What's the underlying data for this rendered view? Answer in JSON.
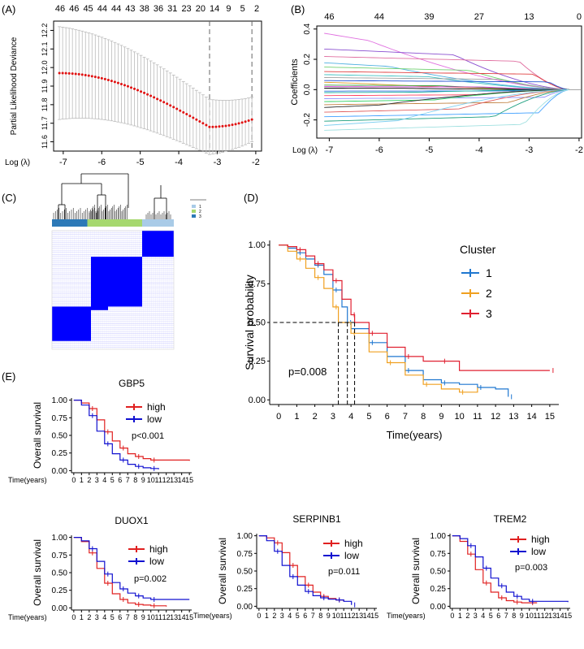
{
  "panel_labels": [
    "(A)",
    "(B)",
    "(C)",
    "(D)",
    "(E)"
  ],
  "chart_data": [
    {
      "id": "A",
      "type": "scatter",
      "ylabel": "Partial Likelihood Deviance",
      "xlabel": "Log (λ)",
      "xlim": [
        -7.25,
        -1.85
      ],
      "ylim": [
        11.55,
        12.25
      ],
      "x_ticks": [
        -7,
        -6,
        -5,
        -4,
        -3,
        -2
      ],
      "y_ticks": [
        "11.6",
        "11.7",
        "11.8",
        "11.9",
        "12.0",
        "12.1",
        "12.2"
      ],
      "y_tick_values": [
        11.6,
        11.7,
        11.8,
        11.9,
        12.0,
        12.1,
        12.2
      ],
      "top_axis_labels": [
        "46",
        "46",
        "45",
        "44",
        "44",
        "43",
        "38",
        "36",
        "31",
        "23",
        "20",
        "14",
        "9",
        "5",
        "2"
      ],
      "vlines": [
        -3.2,
        -2.1
      ],
      "n_points": 60,
      "curve": {
        "x_start": -7.1,
        "x_end": -2.1,
        "y_start": 11.97,
        "y_min": 11.68,
        "y_end": 11.72,
        "x_at_min": -3.2
      },
      "error_bar_halfwidth": {
        "start": 0.25,
        "end": 0.12
      }
    },
    {
      "id": "B",
      "type": "line",
      "ylabel": "Coefficients",
      "xlabel": "Log (λ)",
      "xlim": [
        -7.25,
        -1.95
      ],
      "ylim": [
        -0.32,
        0.42
      ],
      "x_ticks": [
        -7,
        -6,
        -5,
        -4,
        -3,
        -2
      ],
      "y_ticks": [
        "-0.2",
        "0.0",
        "0.2",
        "0.4"
      ],
      "y_tick_values": [
        -0.2,
        0.0,
        0.2,
        0.4
      ],
      "top_axis_labels": [
        "46",
        "44",
        "39",
        "27",
        "13",
        "0"
      ],
      "top_axis_positions": [
        -7,
        -6,
        -5,
        -4,
        -3,
        -2
      ],
      "converge_x": -2.2,
      "paths": [
        {
          "start": 0.38,
          "drop": -6.2,
          "color": "#e070e0"
        },
        {
          "start": 0.27,
          "drop": -4.5,
          "color": "#8a4fd0"
        },
        {
          "start": 0.22,
          "drop": -3.2,
          "color": "#e06fa0"
        },
        {
          "start": 0.18,
          "drop": -5.8,
          "color": "#4fb0e0"
        },
        {
          "start": 0.15,
          "drop": -4.2,
          "color": "#70d070"
        },
        {
          "start": 0.12,
          "drop": -2.9,
          "color": "#e04040"
        },
        {
          "start": 0.1,
          "drop": -5.0,
          "color": "#40c0c0"
        },
        {
          "start": 0.08,
          "drop": -3.6,
          "color": "#a0a0a0"
        },
        {
          "start": 0.06,
          "drop": -2.6,
          "color": "#2050d0"
        },
        {
          "start": 0.05,
          "drop": -6.5,
          "color": "#e0a030"
        },
        {
          "start": 0.03,
          "drop": -4.8,
          "color": "#40a040"
        },
        {
          "start": 0.02,
          "drop": -3.9,
          "color": "#d030d0"
        },
        {
          "start": 0.01,
          "drop": -5.5,
          "color": "#000000"
        },
        {
          "start": -0.01,
          "drop": -3.0,
          "color": "#3070e0"
        },
        {
          "start": -0.02,
          "drop": -5.2,
          "color": "#20b0a0"
        },
        {
          "start": -0.04,
          "drop": -4.1,
          "color": "#ff4060"
        },
        {
          "start": -0.06,
          "drop": -2.7,
          "color": "#9090ff"
        },
        {
          "start": -0.08,
          "drop": -4.9,
          "color": "#30d060"
        },
        {
          "start": -0.1,
          "drop": -3.4,
          "color": "#c08040"
        },
        {
          "start": -0.12,
          "drop": -6.0,
          "color": "#303030"
        },
        {
          "start": -0.15,
          "drop": -4.4,
          "color": "#e06060"
        },
        {
          "start": -0.18,
          "drop": -2.8,
          "color": "#40a0ff"
        },
        {
          "start": -0.21,
          "drop": -3.7,
          "color": "#20a080"
        },
        {
          "start": -0.24,
          "drop": -5.6,
          "color": "#80d0f0"
        },
        {
          "start": -0.27,
          "drop": -3.1,
          "color": "#a0e0e0"
        }
      ]
    },
    {
      "id": "C",
      "type": "heatmap",
      "legend": [
        "1",
        "2",
        "3"
      ],
      "colors": {
        "1": "#2c79b7",
        "2": "#a6d86e",
        "3": "#a9cbe7",
        "fill": "#0000ff"
      },
      "blocks": [
        {
          "cluster": "2",
          "from": 0.29,
          "to": 0.74
        },
        {
          "cluster": "3",
          "from": 0.74,
          "to": 1.0
        },
        {
          "cluster": "1",
          "from": 0.0,
          "to": 0.29
        }
      ]
    },
    {
      "id": "D",
      "type": "line",
      "ylabel": "Survival probability",
      "xlabel": "Time(years)",
      "xlim": [
        -0.5,
        15.5
      ],
      "ylim": [
        -0.05,
        1.05
      ],
      "x_ticks": [
        0,
        1,
        2,
        3,
        4,
        5,
        6,
        7,
        8,
        9,
        10,
        11,
        12,
        13,
        14,
        15
      ],
      "y_ticks": [
        "0.00",
        "0.25",
        "0.50",
        "0.75",
        "1.00"
      ],
      "y_tick_values": [
        0,
        0.25,
        0.5,
        0.75,
        1.0
      ],
      "legend_title": "Cluster",
      "annotation": "p=0.008",
      "median_times": [
        3.3,
        3.8,
        4.2
      ],
      "series": [
        {
          "name": "1",
          "color": "#1f77d0",
          "points": [
            [
              0,
              1
            ],
            [
              0.5,
              0.98
            ],
            [
              1,
              0.95
            ],
            [
              1.5,
              0.91
            ],
            [
              2,
              0.87
            ],
            [
              2.5,
              0.81
            ],
            [
              3,
              0.71
            ],
            [
              3.5,
              0.6
            ],
            [
              3.8,
              0.5
            ],
            [
              4,
              0.46
            ],
            [
              5,
              0.37
            ],
            [
              6,
              0.28
            ],
            [
              7,
              0.19
            ],
            [
              8,
              0.13
            ],
            [
              9,
              0.11
            ],
            [
              10,
              0.1
            ],
            [
              11,
              0.08
            ],
            [
              12,
              0.07
            ],
            [
              12.7,
              0.02
            ]
          ]
        },
        {
          "name": "2",
          "color": "#f0a020",
          "points": [
            [
              0,
              1
            ],
            [
              0.5,
              0.96
            ],
            [
              1,
              0.91
            ],
            [
              1.5,
              0.85
            ],
            [
              2,
              0.79
            ],
            [
              2.5,
              0.72
            ],
            [
              3,
              0.6
            ],
            [
              3.3,
              0.5
            ],
            [
              4,
              0.43
            ],
            [
              5,
              0.31
            ],
            [
              6,
              0.24
            ],
            [
              7,
              0.16
            ],
            [
              8,
              0.1
            ],
            [
              9,
              0.07
            ],
            [
              10,
              0.05
            ],
            [
              11,
              0.08
            ]
          ]
        },
        {
          "name": "3",
          "color": "#e02030",
          "points": [
            [
              0,
              1
            ],
            [
              0.5,
              0.99
            ],
            [
              1,
              0.97
            ],
            [
              1.5,
              0.93
            ],
            [
              2,
              0.88
            ],
            [
              2.5,
              0.84
            ],
            [
              3,
              0.77
            ],
            [
              3.5,
              0.65
            ],
            [
              4,
              0.55
            ],
            [
              4.2,
              0.5
            ],
            [
              5,
              0.43
            ],
            [
              6,
              0.34
            ],
            [
              7,
              0.28
            ],
            [
              8,
              0.25
            ],
            [
              9,
              0.25
            ],
            [
              10,
              0.19
            ],
            [
              15,
              0.19
            ]
          ]
        }
      ]
    },
    {
      "id": "E1",
      "type": "line",
      "title": "GBP5",
      "ylabel": "Overall survival",
      "xlabel": "Time(years)",
      "annotation": "p<0.001",
      "x_ticks": [
        "0",
        "1",
        "2",
        "3",
        "4",
        "5",
        "6",
        "7",
        "8",
        "9",
        "10",
        "11",
        "12",
        "13",
        "14",
        "15"
      ],
      "y_ticks": [
        "0.00",
        "0.25",
        "0.50",
        "0.75",
        "1.00"
      ],
      "series": [
        {
          "name": "high",
          "color": "#e02020",
          "points": [
            [
              0,
              1
            ],
            [
              1,
              0.96
            ],
            [
              2,
              0.88
            ],
            [
              3,
              0.72
            ],
            [
              4,
              0.55
            ],
            [
              5,
              0.42
            ],
            [
              6,
              0.32
            ],
            [
              7,
              0.24
            ],
            [
              8,
              0.2
            ],
            [
              9,
              0.17
            ],
            [
              10,
              0.15
            ],
            [
              15,
              0.14
            ]
          ]
        },
        {
          "name": "low",
          "color": "#1010d0",
          "points": [
            [
              0,
              1
            ],
            [
              1,
              0.93
            ],
            [
              2,
              0.78
            ],
            [
              3,
              0.56
            ],
            [
              4,
              0.38
            ],
            [
              5,
              0.24
            ],
            [
              6,
              0.15
            ],
            [
              7,
              0.09
            ],
            [
              8,
              0.06
            ],
            [
              9,
              0.04
            ],
            [
              10,
              0.03
            ],
            [
              11,
              0.02
            ]
          ]
        }
      ]
    },
    {
      "id": "E2",
      "type": "line",
      "title": "DUOX1",
      "ylabel": "Overall survival",
      "xlabel": "Time(years)",
      "annotation": "p=0.002",
      "x_ticks": [
        "0",
        "1",
        "2",
        "3",
        "4",
        "5",
        "6",
        "7",
        "8",
        "9",
        "10",
        "11",
        "12",
        "13",
        "14",
        "15"
      ],
      "y_ticks": [
        "0.00",
        "0.25",
        "0.50",
        "0.75",
        "1.00"
      ],
      "series": [
        {
          "name": "high",
          "color": "#e02020",
          "points": [
            [
              0,
              1
            ],
            [
              1,
              0.94
            ],
            [
              2,
              0.78
            ],
            [
              3,
              0.56
            ],
            [
              4,
              0.35
            ],
            [
              5,
              0.2
            ],
            [
              6,
              0.12
            ],
            [
              7,
              0.07
            ],
            [
              8,
              0.05
            ],
            [
              9,
              0.04
            ],
            [
              10,
              0.03
            ],
            [
              12,
              0.02
            ]
          ]
        },
        {
          "name": "low",
          "color": "#1010d0",
          "points": [
            [
              0,
              1
            ],
            [
              1,
              0.95
            ],
            [
              2,
              0.84
            ],
            [
              3,
              0.66
            ],
            [
              4,
              0.48
            ],
            [
              5,
              0.36
            ],
            [
              6,
              0.27
            ],
            [
              7,
              0.21
            ],
            [
              8,
              0.17
            ],
            [
              9,
              0.14
            ],
            [
              10,
              0.12
            ],
            [
              15,
              0.12
            ]
          ]
        }
      ]
    },
    {
      "id": "E3",
      "type": "line",
      "title": "SERPINB1",
      "ylabel": "Overall survival",
      "xlabel": "Time(years)",
      "annotation": "p=0.011",
      "x_ticks": [
        "0",
        "1",
        "2",
        "3",
        "4",
        "5",
        "6",
        "7",
        "8",
        "9",
        "10",
        "11",
        "12",
        "13",
        "14",
        "15"
      ],
      "y_ticks": [
        "0.00",
        "0.25",
        "0.50",
        "0.75",
        "1.00"
      ],
      "series": [
        {
          "name": "high",
          "color": "#e02020",
          "points": [
            [
              0,
              1
            ],
            [
              1,
              0.97
            ],
            [
              2,
              0.9
            ],
            [
              3,
              0.76
            ],
            [
              4,
              0.58
            ],
            [
              5,
              0.42
            ],
            [
              6,
              0.3
            ],
            [
              7,
              0.2
            ],
            [
              8,
              0.14
            ],
            [
              9,
              0.11
            ],
            [
              10,
              0.09
            ],
            [
              11,
              0.07
            ]
          ]
        },
        {
          "name": "low",
          "color": "#1010d0",
          "points": [
            [
              0,
              1
            ],
            [
              1,
              0.93
            ],
            [
              2,
              0.78
            ],
            [
              3,
              0.58
            ],
            [
              4,
              0.42
            ],
            [
              5,
              0.3
            ],
            [
              6,
              0.21
            ],
            [
              7,
              0.15
            ],
            [
              8,
              0.12
            ],
            [
              9,
              0.1
            ],
            [
              10,
              0.09
            ],
            [
              11,
              0.07
            ],
            [
              12,
              0.02
            ]
          ]
        }
      ]
    },
    {
      "id": "E4",
      "type": "line",
      "title": "TREM2",
      "ylabel": "Overall survival",
      "xlabel": "Time(years)",
      "annotation": "p=0.003",
      "x_ticks": [
        "0",
        "1",
        "2",
        "3",
        "4",
        "5",
        "6",
        "7",
        "8",
        "9",
        "10",
        "11",
        "12",
        "13",
        "14",
        "15"
      ],
      "y_ticks": [
        "0.00",
        "0.25",
        "0.50",
        "0.75",
        "1.00"
      ],
      "series": [
        {
          "name": "high",
          "color": "#e02020",
          "points": [
            [
              0,
              1
            ],
            [
              1,
              0.92
            ],
            [
              2,
              0.74
            ],
            [
              3,
              0.52
            ],
            [
              4,
              0.33
            ],
            [
              5,
              0.2
            ],
            [
              6,
              0.12
            ],
            [
              7,
              0.08
            ],
            [
              8,
              0.06
            ],
            [
              9,
              0.05
            ],
            [
              10,
              0.05
            ],
            [
              11,
              0.05
            ]
          ]
        },
        {
          "name": "low",
          "color": "#1010d0",
          "points": [
            [
              0,
              1
            ],
            [
              1,
              0.96
            ],
            [
              2,
              0.86
            ],
            [
              3,
              0.7
            ],
            [
              4,
              0.54
            ],
            [
              5,
              0.4
            ],
            [
              6,
              0.29
            ],
            [
              7,
              0.2
            ],
            [
              8,
              0.14
            ],
            [
              9,
              0.1
            ],
            [
              10,
              0.07
            ],
            [
              15,
              0.06
            ]
          ]
        }
      ]
    }
  ]
}
